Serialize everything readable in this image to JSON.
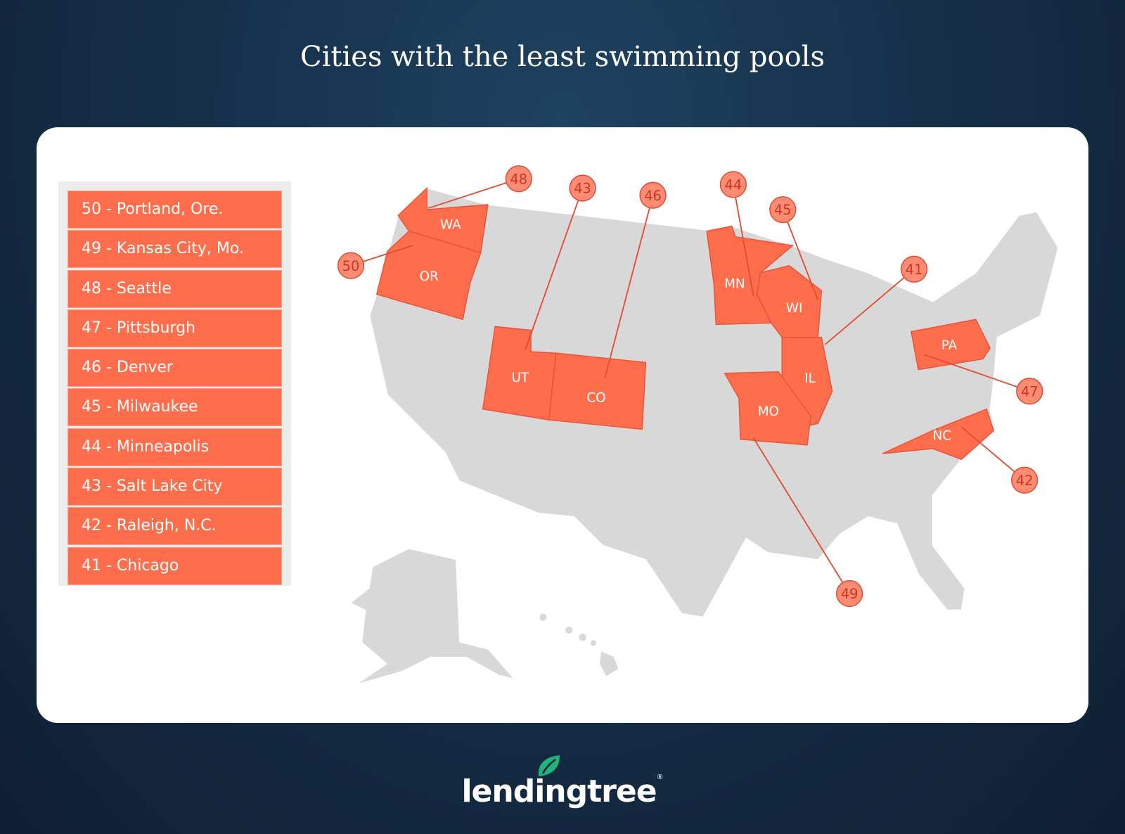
{
  "title": "Cities with the least swimming pools",
  "legend": [
    "50 - Portland, Ore.",
    "49 - Kansas City, Mo.",
    "48 - Seattle",
    "47 - Pittsburgh",
    "46 - Denver",
    "45 - Milwaukee",
    "44 - Minneapolis",
    "43 - Salt Lake City",
    "42 - Raleigh, N.C.",
    "41 - Chicago"
  ],
  "states": {
    "WA": "WA",
    "OR": "OR",
    "UT": "UT",
    "CO": "CO",
    "MN": "MN",
    "WI": "WI",
    "IL": "IL",
    "MO": "MO",
    "PA": "PA",
    "NC": "NC"
  },
  "markers": {
    "m50": "50",
    "m49": "49",
    "m48": "48",
    "m47": "47",
    "m46": "46",
    "m45": "45",
    "m44": "44",
    "m43": "43",
    "m42": "42",
    "m41": "41"
  },
  "colors": {
    "highlight": "#fe6e4c",
    "base_state": "#d9d8d9",
    "background": "#16304a",
    "logo_leaf": "#1fb57a"
  },
  "logo": {
    "text": "lendingtree",
    "reg": "®"
  }
}
